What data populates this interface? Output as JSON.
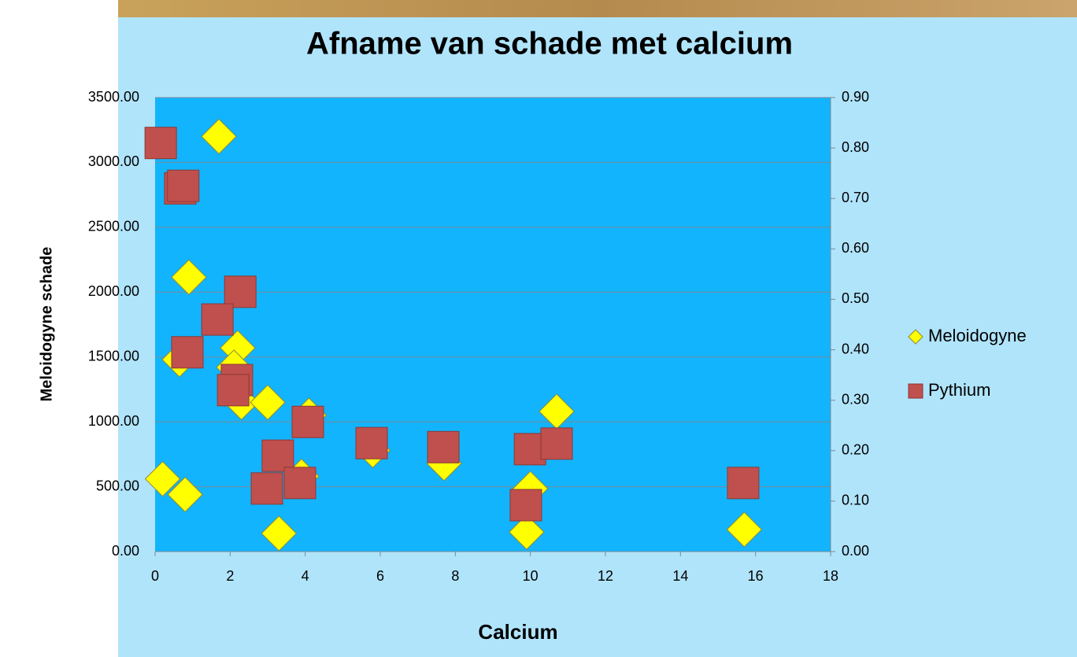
{
  "chart_data": {
    "type": "scatter",
    "title": "Afname van schade met calcium",
    "x_label": "Calcium",
    "y_label": "Meloidogyne schade",
    "xlim": [
      0,
      18
    ],
    "xticks": [
      0,
      2,
      4,
      6,
      8,
      10,
      12,
      14,
      16,
      18
    ],
    "ylim": [
      0,
      3500
    ],
    "yticks": [
      {
        "value": 0,
        "label": "0.00"
      },
      {
        "value": 500,
        "label": "500.00"
      },
      {
        "value": 1000,
        "label": "1000.00"
      },
      {
        "value": 1500,
        "label": "1500.00"
      },
      {
        "value": 2000,
        "label": "2000.00"
      },
      {
        "value": 2500,
        "label": "2500.00"
      },
      {
        "value": 3000,
        "label": "3000.00"
      },
      {
        "value": 3500,
        "label": "3500.00"
      }
    ],
    "y2lim": [
      0,
      0.9
    ],
    "y2ticks": [
      {
        "value": 0,
        "label": "0.00"
      },
      {
        "value": 0.1,
        "label": "0.10"
      },
      {
        "value": 0.2,
        "label": "0.20"
      },
      {
        "value": 0.3,
        "label": "0.30"
      },
      {
        "value": 0.4,
        "label": "0.40"
      },
      {
        "value": 0.5,
        "label": "0.50"
      },
      {
        "value": 0.6,
        "label": "0.60"
      },
      {
        "value": 0.7,
        "label": "0.70"
      },
      {
        "value": 0.8,
        "label": "0.80"
      },
      {
        "value": 0.9,
        "label": "0.90"
      }
    ],
    "grid": true,
    "legend": "right",
    "series": [
      {
        "name": "Meloidogyne",
        "color": "#ffff00",
        "marker": "diamond",
        "x": [
          0.2,
          0.8,
          0.9,
          0.65,
          1.7,
          2.2,
          2.1,
          2.3,
          3.0,
          3.3,
          3.9,
          4.1,
          5.8,
          7.7,
          9.9,
          10.0,
          10.7,
          15.7
        ],
        "values": [
          560,
          440,
          2115,
          1480,
          3200,
          1570,
          1420,
          1150,
          1150,
          140,
          580,
          1050,
          780,
          680,
          150,
          485,
          1080,
          170
        ]
      },
      {
        "name": "Pythium",
        "color": "#c0504d",
        "marker": "square",
        "axis": "y2",
        "x": [
          0.15,
          0.67,
          0.75,
          2.27,
          1.66,
          0.86,
          2.18,
          2.08,
          4.07,
          3.27,
          2.98,
          3.86,
          5.77,
          7.68,
          9.99,
          10.7,
          9.88,
          15.67
        ],
        "values": [
          0.81,
          0.72,
          0.725,
          0.515,
          0.46,
          0.395,
          0.34,
          0.32,
          0.257,
          0.19,
          0.125,
          0.136,
          0.215,
          0.207,
          0.203,
          0.214,
          0.092,
          0.136
        ]
      }
    ]
  }
}
